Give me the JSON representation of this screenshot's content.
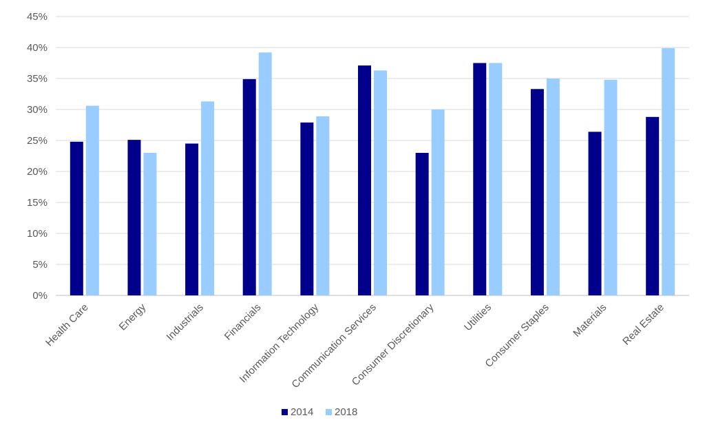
{
  "chart_data": {
    "type": "bar",
    "categories": [
      "Health Care",
      "Energy",
      "Industrials",
      "Financials",
      "Information Technology",
      "Communication Services",
      "Consumer Discretionary",
      "Utilities",
      "Consumer Staples",
      "Materials",
      "Real Estate"
    ],
    "series": [
      {
        "name": "2014",
        "color": "#00008B",
        "values": [
          24.8,
          25.1,
          24.5,
          34.9,
          27.9,
          37.1,
          23.0,
          37.5,
          33.3,
          26.4,
          28.8
        ]
      },
      {
        "name": "2018",
        "color": "#99CCFF",
        "values": [
          30.6,
          23.0,
          31.3,
          39.2,
          28.9,
          36.3,
          30.0,
          37.5,
          35.0,
          34.8,
          39.9
        ]
      }
    ],
    "ylim": [
      0,
      45
    ],
    "yticks": [
      0,
      5,
      10,
      15,
      20,
      25,
      30,
      35,
      40,
      45
    ],
    "ytick_labels": [
      "0%",
      "5%",
      "10%",
      "15%",
      "20%",
      "25%",
      "30%",
      "35%",
      "40%",
      "45%"
    ],
    "grid": true,
    "legend_position": "bottom",
    "title": "",
    "xlabel": "",
    "ylabel": ""
  }
}
